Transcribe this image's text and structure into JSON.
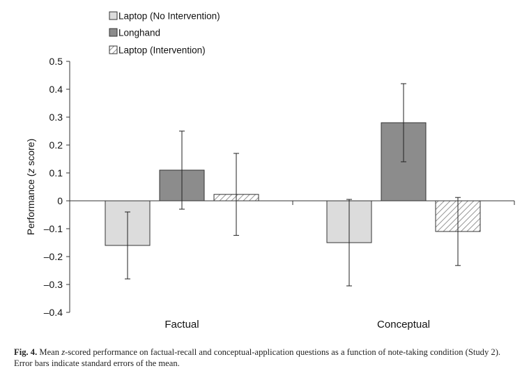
{
  "chart_data": {
    "type": "bar",
    "categories": [
      "Factual",
      "Conceptual"
    ],
    "series": [
      {
        "name": "Laptop (No Intervention)",
        "values": [
          -0.16,
          -0.15
        ],
        "error": [
          0.12,
          0.155
        ],
        "fill": "#dcdcdc",
        "pattern": "solid"
      },
      {
        "name": "Longhand",
        "values": [
          0.11,
          0.28
        ],
        "error": [
          0.14,
          0.14
        ],
        "fill": "#8c8c8c",
        "pattern": "solid"
      },
      {
        "name": "Laptop (Intervention)",
        "values": [
          0.023,
          -0.11
        ],
        "error": [
          0.147,
          0.122
        ],
        "fill": "#ffffff",
        "pattern": "hatch"
      }
    ],
    "ylabel_prefix": "Performance (",
    "ylabel_italic": "z",
    "ylabel_suffix": " score)",
    "ylim": [
      -0.4,
      0.5
    ],
    "yticks": [
      "0.5",
      "0.4",
      "0.3",
      "0.2",
      "0.1",
      "0",
      "–0.1",
      "–0.2",
      "–0.3",
      "–0.4"
    ],
    "yticks_values": [
      0.5,
      0.4,
      0.3,
      0.2,
      0.1,
      0,
      -0.1,
      -0.2,
      -0.3,
      -0.4
    ],
    "grid": false,
    "legend_position": "top-left"
  },
  "caption": {
    "fig_label": "Fig. 4.",
    "text_1": " Mean ",
    "italic": "z",
    "text_2": "-scored performance on factual-recall and conceptual-application questions as a function of note-taking condition (Study 2). Error bars indicate standard errors of the mean."
  }
}
